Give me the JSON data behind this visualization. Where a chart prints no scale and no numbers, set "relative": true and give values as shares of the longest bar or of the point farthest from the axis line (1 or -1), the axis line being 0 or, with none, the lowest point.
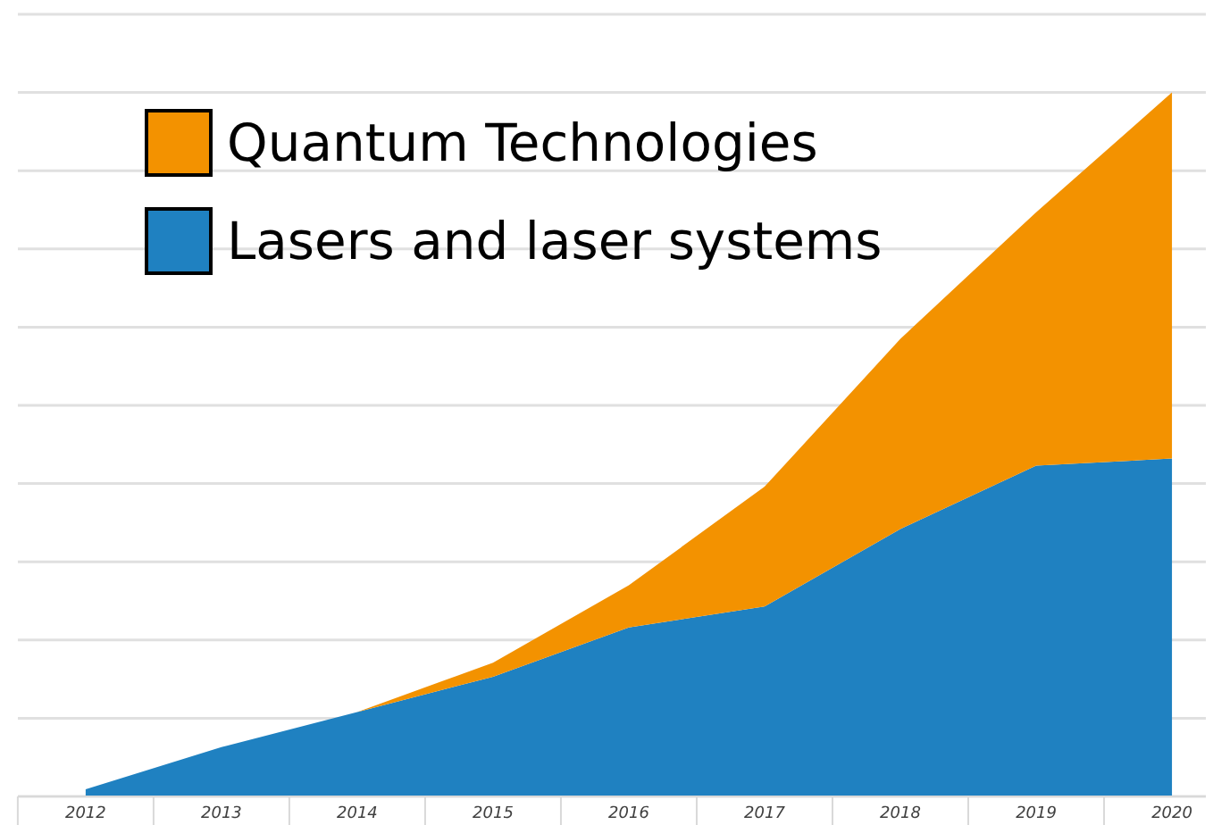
{
  "chart_data": {
    "type": "area",
    "stacked": true,
    "relative": true,
    "grid": "y",
    "legend": "top left",
    "categories": [
      "2012",
      "2013",
      "2014",
      "2015",
      "2016",
      "2017",
      "2018",
      "2019",
      "2020"
    ],
    "series": [
      {
        "name": "Lasers and laser systems",
        "color": "#1f81c1",
        "values": [
          0.01,
          0.07,
          0.12,
          0.17,
          0.24,
          0.27,
          0.38,
          0.47,
          0.48
        ]
      },
      {
        "name": "Quantum Technologies",
        "color": "#f39200",
        "values": [
          0,
          0,
          0,
          0.02,
          0.06,
          0.17,
          0.27,
          0.36,
          0.52
        ]
      }
    ]
  }
}
